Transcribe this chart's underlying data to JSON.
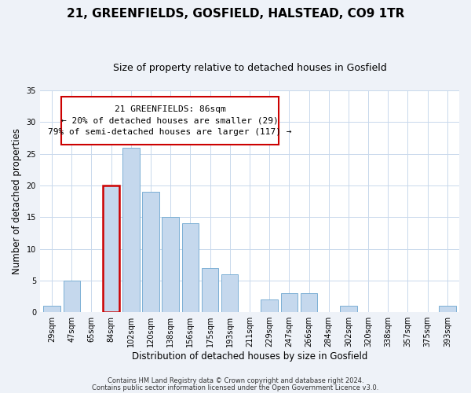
{
  "title": "21, GREENFIELDS, GOSFIELD, HALSTEAD, CO9 1TR",
  "subtitle": "Size of property relative to detached houses in Gosfield",
  "xlabel": "Distribution of detached houses by size in Gosfield",
  "ylabel": "Number of detached properties",
  "bar_labels": [
    "29sqm",
    "47sqm",
    "65sqm",
    "84sqm",
    "102sqm",
    "120sqm",
    "138sqm",
    "156sqm",
    "175sqm",
    "193sqm",
    "211sqm",
    "229sqm",
    "247sqm",
    "266sqm",
    "284sqm",
    "302sqm",
    "320sqm",
    "338sqm",
    "357sqm",
    "375sqm",
    "393sqm"
  ],
  "bar_values": [
    1,
    5,
    0,
    20,
    26,
    19,
    15,
    14,
    7,
    6,
    0,
    2,
    3,
    3,
    0,
    1,
    0,
    0,
    0,
    0,
    1
  ],
  "bar_color": "#c5d8ed",
  "bar_edge_color": "#7bafd4",
  "highlight_bar_index": 3,
  "highlight_edge_color": "#cc0000",
  "annotation_line1": "21 GREENFIELDS: 86sqm",
  "annotation_line2": "← 20% of detached houses are smaller (29)",
  "annotation_line3": "79% of semi-detached houses are larger (117) →",
  "ylim": [
    0,
    35
  ],
  "yticks": [
    0,
    5,
    10,
    15,
    20,
    25,
    30,
    35
  ],
  "footer_line1": "Contains HM Land Registry data © Crown copyright and database right 2024.",
  "footer_line2": "Contains public sector information licensed under the Open Government Licence v3.0.",
  "bg_color": "#eef2f8",
  "plot_bg_color": "#ffffff",
  "grid_color": "#c8d8ec",
  "title_fontsize": 11,
  "subtitle_fontsize": 9,
  "axis_label_fontsize": 8.5,
  "tick_fontsize": 7,
  "annotation_fontsize": 8,
  "footer_fontsize": 6
}
